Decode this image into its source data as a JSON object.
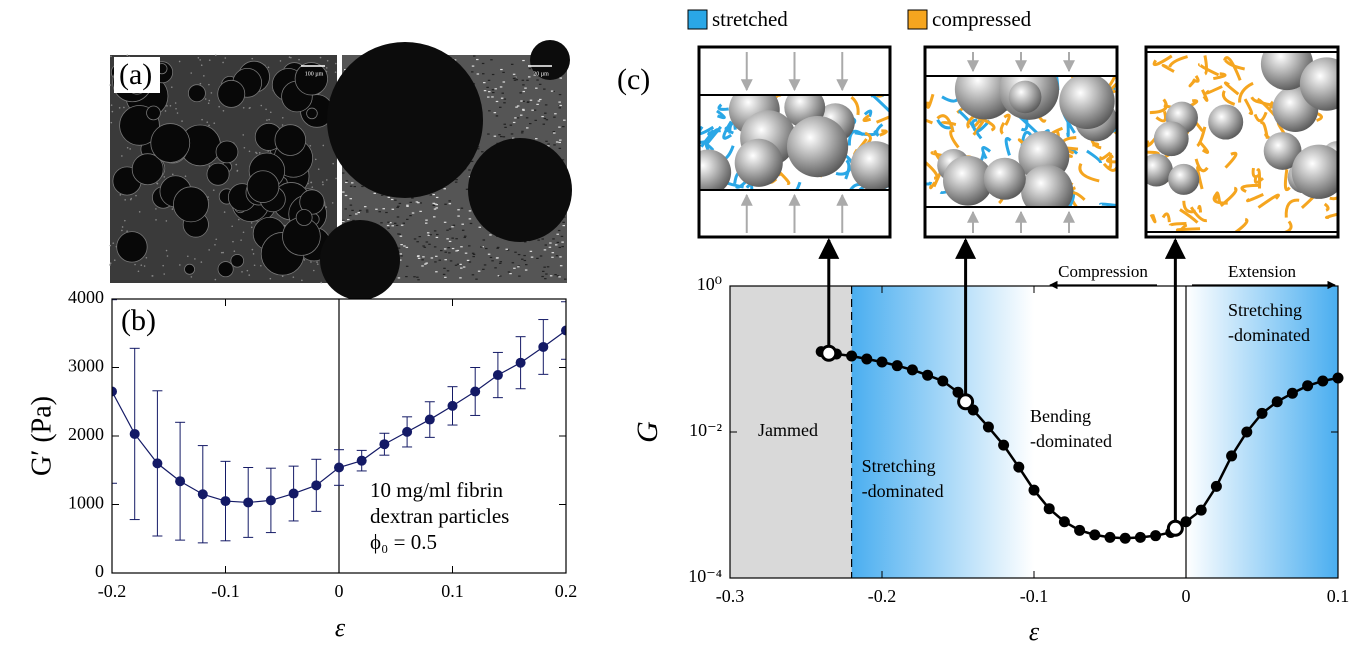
{
  "image_panel": {
    "label": "(a)",
    "scale_bars": [
      "100 µm",
      "20 µm"
    ]
  },
  "chart_data": [
    {
      "type": "line",
      "label": "(b)",
      "xlabel": "ε",
      "ylabel": "G′ (Pa)",
      "annotation": [
        "10 mg/ml fibrin",
        "dextran particles",
        "ϕ₀ = 0.5"
      ],
      "x": [
        -0.2,
        -0.18,
        -0.16,
        -0.14,
        -0.12,
        -0.1,
        -0.08,
        -0.06,
        -0.04,
        -0.02,
        0,
        0.02,
        0.04,
        0.06,
        0.08,
        0.1,
        0.12,
        0.14,
        0.16,
        0.18,
        0.2
      ],
      "series": [
        {
          "color": "#141a66",
          "values": [
            2650,
            2030,
            1600,
            1340,
            1150,
            1050,
            1030,
            1060,
            1160,
            1280,
            1540,
            1640,
            1880,
            2060,
            2240,
            2440,
            2650,
            2890,
            3070,
            3300,
            3540
          ],
          "errors": [
            1340,
            1250,
            1060,
            860,
            710,
            580,
            510,
            470,
            400,
            380,
            260,
            150,
            160,
            220,
            260,
            280,
            350,
            330,
            380,
            400,
            420
          ]
        }
      ],
      "xlim": [
        -0.2,
        0.2
      ],
      "ylim": [
        0,
        4000
      ],
      "xticks": [
        -0.2,
        -0.1,
        0,
        0.1,
        0.2
      ],
      "yticks": [
        0,
        1000,
        2000,
        3000,
        4000
      ],
      "vline": 0
    },
    {
      "type": "line",
      "label": "(c)",
      "xlabel": "ε",
      "ylabel": "G",
      "log_y": true,
      "legend": [
        {
          "name": "stretched",
          "color": "#2aa7e6"
        },
        {
          "name": "compressed",
          "color": "#f5a51f"
        }
      ],
      "x": [
        -0.24,
        -0.23,
        -0.22,
        -0.21,
        -0.2,
        -0.19,
        -0.18,
        -0.17,
        -0.16,
        -0.15,
        -0.14,
        -0.13,
        -0.12,
        -0.11,
        -0.1,
        -0.09,
        -0.08,
        -0.07,
        -0.06,
        -0.05,
        -0.04,
        -0.03,
        -0.02,
        -0.01,
        0,
        0.01,
        0.02,
        0.03,
        0.04,
        0.05,
        0.06,
        0.07,
        0.08,
        0.09,
        0.1
      ],
      "series": [
        {
          "color": "#000000",
          "values": [
            0.126,
            0.117,
            0.11,
            0.1,
            0.091,
            0.081,
            0.071,
            0.06,
            0.05,
            0.035,
            0.02,
            0.0117,
            0.0066,
            0.0033,
            0.0016,
            0.00089,
            0.00059,
            0.00045,
            0.00039,
            0.00036,
            0.00035,
            0.00036,
            0.00038,
            0.00042,
            0.00059,
            0.00085,
            0.0018,
            0.0047,
            0.01,
            0.018,
            0.026,
            0.034,
            0.043,
            0.05,
            0.055
          ]
        }
      ],
      "highlight": {
        "x": [
          -0.235,
          -0.145,
          -0.007
        ],
        "values": [
          0.12,
          0.026,
          0.00048
        ]
      },
      "regions": [
        {
          "label": [
            "Jammed"
          ],
          "xlim": [
            -0.3,
            -0.22
          ],
          "fill": "gray"
        },
        {
          "label": [
            "Stretching",
            "-dominated"
          ],
          "xlim": [
            -0.22,
            -0.1
          ],
          "fill": "fade-right"
        },
        {
          "label": [
            "Bending",
            "-dominated"
          ],
          "xlim": [
            -0.1,
            0
          ],
          "fill": "none"
        },
        {
          "label": [
            "Stretching",
            "-dominated"
          ],
          "xlim": [
            0,
            0.1
          ],
          "fill": "fade-left"
        }
      ],
      "boundary": -0.22,
      "vline": 0,
      "annotations": [
        {
          "text": "Compression",
          "direction": "left"
        },
        {
          "text": "Extension",
          "direction": "right"
        }
      ],
      "xlim": [
        -0.3,
        0.1
      ],
      "ylim": [
        0.0001,
        1
      ],
      "xticks": [
        -0.3,
        -0.2,
        -0.1,
        0,
        0.1
      ],
      "yticks": [
        {
          "value": 0.0001,
          "label": "10⁻⁴"
        },
        {
          "value": 0.01,
          "label": "10⁻²"
        },
        {
          "value": 1,
          "label": "10⁰"
        }
      ]
    }
  ]
}
